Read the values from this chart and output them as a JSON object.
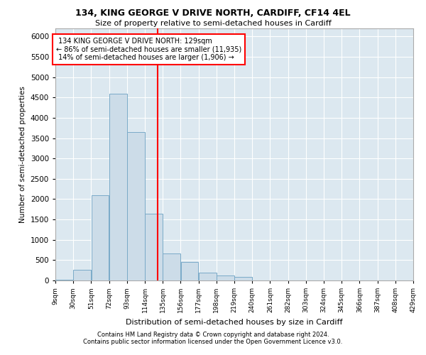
{
  "title1": "134, KING GEORGE V DRIVE NORTH, CARDIFF, CF14 4EL",
  "title2": "Size of property relative to semi-detached houses in Cardiff",
  "xlabel": "Distribution of semi-detached houses by size in Cardiff",
  "ylabel": "Number of semi-detached properties",
  "footnote1": "Contains HM Land Registry data © Crown copyright and database right 2024.",
  "footnote2": "Contains public sector information licensed under the Open Government Licence v3.0.",
  "bar_color": "#ccdce8",
  "bar_edgecolor": "#7aaac8",
  "background_color": "#dce8f0",
  "grid_color": "#ffffff",
  "annotation_line_color": "red",
  "property_size": 129,
  "property_label": "134 KING GEORGE V DRIVE NORTH: 129sqm",
  "pct_smaller": 86,
  "num_smaller": "11,935",
  "pct_larger": 14,
  "num_larger": "1,906",
  "bin_edges": [
    9,
    30,
    51,
    72,
    93,
    114,
    135,
    156,
    177,
    198,
    219,
    240,
    261,
    282,
    303,
    324,
    345,
    366,
    387,
    408,
    429
  ],
  "bin_labels": [
    "9sqm",
    "30sqm",
    "51sqm",
    "72sqm",
    "93sqm",
    "114sqm",
    "135sqm",
    "156sqm",
    "177sqm",
    "198sqm",
    "219sqm",
    "240sqm",
    "261sqm",
    "282sqm",
    "303sqm",
    "324sqm",
    "345sqm",
    "366sqm",
    "387sqm",
    "408sqm",
    "429sqm"
  ],
  "counts": [
    20,
    270,
    2100,
    4600,
    3650,
    1650,
    670,
    450,
    200,
    115,
    95,
    0,
    0,
    0,
    0,
    0,
    0,
    0,
    0,
    0
  ],
  "ylim": [
    0,
    6200
  ],
  "yticks": [
    0,
    500,
    1000,
    1500,
    2000,
    2500,
    3000,
    3500,
    4000,
    4500,
    5000,
    5500,
    6000
  ]
}
